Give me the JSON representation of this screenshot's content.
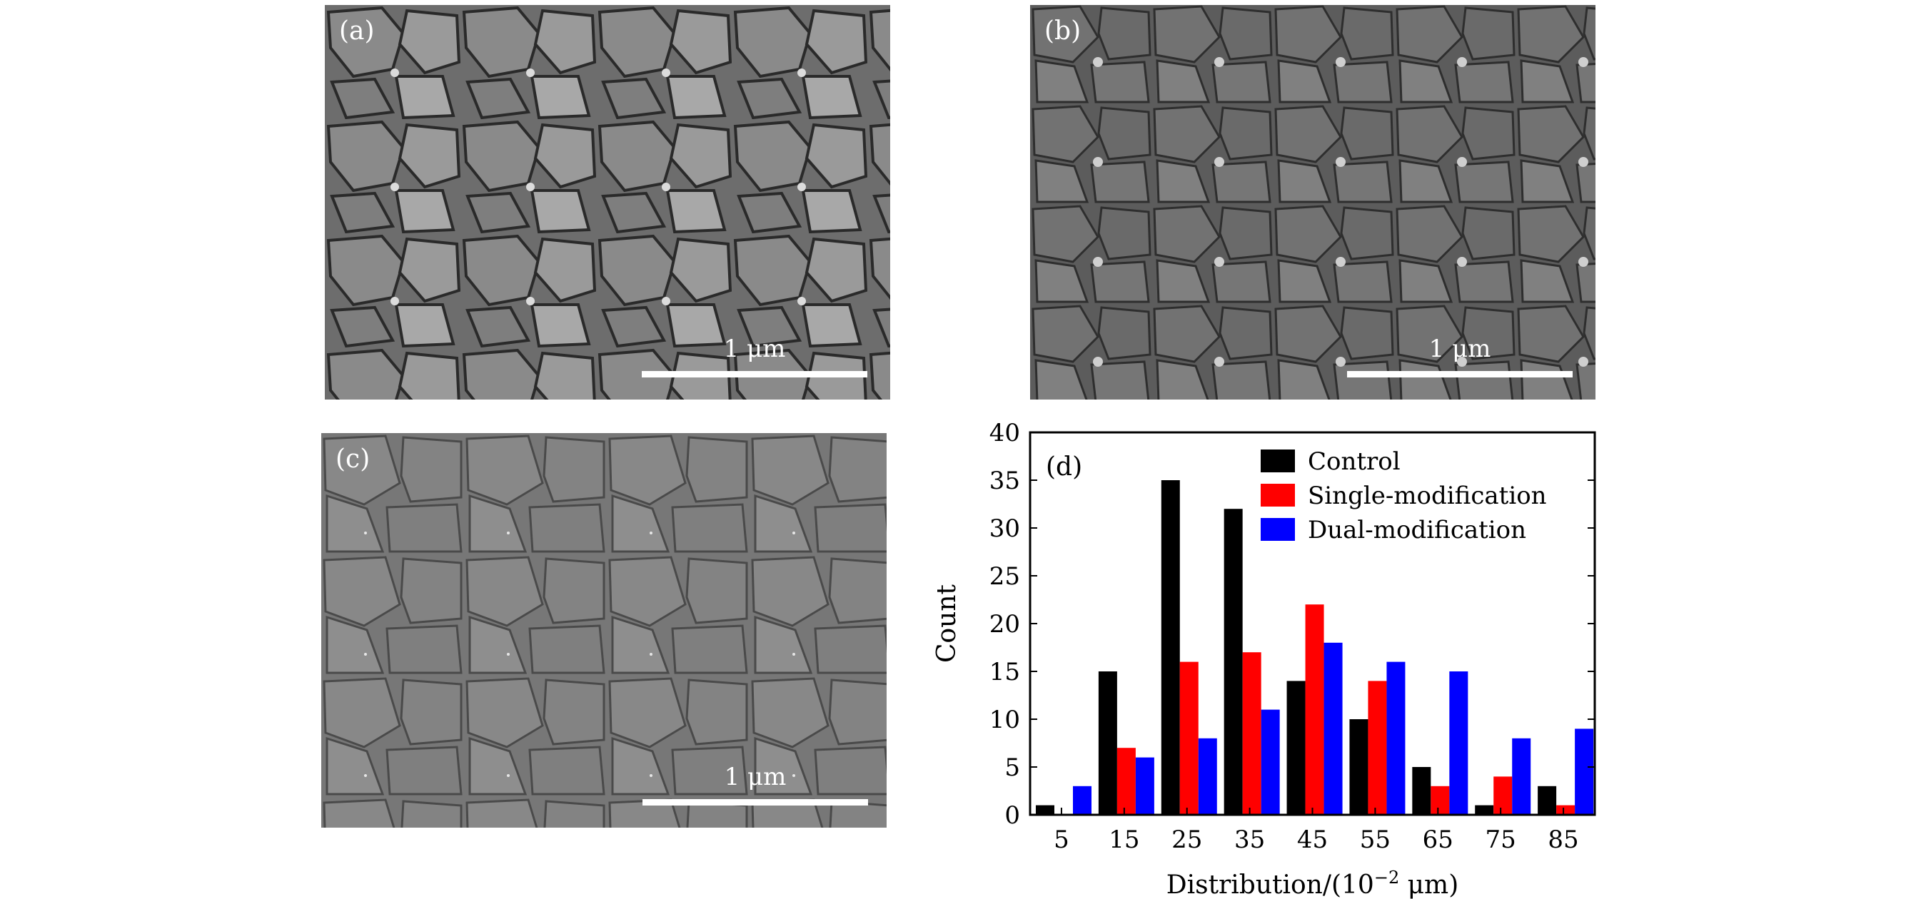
{
  "panels": [
    {
      "label": "(a)",
      "scale_label": "1 μm",
      "style": "coarse"
    },
    {
      "label": "(b)",
      "scale_label": "1 μm",
      "style": "medium"
    },
    {
      "label": "(c)",
      "scale_label": "1 μm",
      "style": "fine"
    }
  ],
  "chart_data": {
    "type": "bar",
    "panel_label": "(d)",
    "categories": [
      "5",
      "15",
      "25",
      "35",
      "45",
      "55",
      "65",
      "75",
      "85"
    ],
    "series": [
      {
        "name": "Control",
        "color": "#000000",
        "values": [
          1,
          15,
          35,
          32,
          14,
          10,
          5,
          1,
          3
        ]
      },
      {
        "name": "Single-modification",
        "color": "#ff0000",
        "values": [
          0,
          7,
          16,
          17,
          22,
          14,
          3,
          4,
          1
        ]
      },
      {
        "name": "Dual-modification",
        "color": "#0000ff",
        "values": [
          3,
          6,
          8,
          11,
          18,
          16,
          15,
          8,
          9
        ]
      }
    ],
    "xlabel": "Distribution/(10",
    "xlabel_exp": "−2",
    "xlabel_tail": " μm)",
    "ylabel": "Count",
    "ylim": [
      0,
      40
    ],
    "yticks": [
      "0",
      "5",
      "10",
      "15",
      "20",
      "25",
      "30",
      "35",
      "40"
    ],
    "legend_position": "top-right",
    "grid": false
  }
}
